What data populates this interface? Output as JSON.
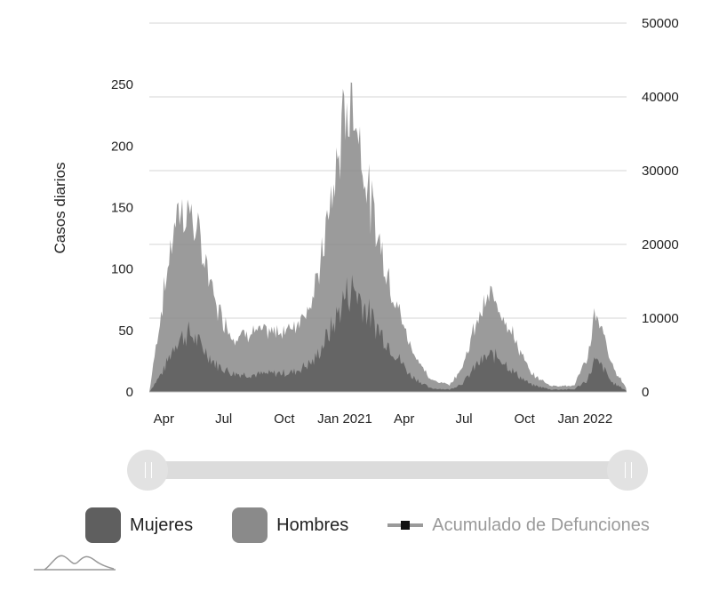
{
  "colors": {
    "women": "#5f5f5f",
    "men": "#8a8a8a",
    "cumulative_line": "#9a9a9a",
    "grid": "#d6d6d6"
  },
  "chart_data": {
    "type": "area",
    "stacked": true,
    "y_axis_left": {
      "label": "Casos diarios",
      "ticks": [
        0,
        50,
        100,
        150,
        200,
        250
      ],
      "range": [
        0,
        300
      ]
    },
    "y_axis_right": {
      "ticks": [
        0,
        10000,
        20000,
        30000,
        40000,
        50000
      ],
      "range": [
        0,
        50000
      ]
    },
    "x_axis": {
      "tick_labels": [
        "Apr",
        "Jul",
        "Oct",
        "Jan 2021",
        "Apr",
        "Jul",
        "Oct",
        "Jan 2022"
      ],
      "tick_dates": [
        "2020-04-01",
        "2020-07-01",
        "2020-10-01",
        "2021-01-01",
        "2021-04-01",
        "2021-07-01",
        "2021-10-01",
        "2022-01-01"
      ],
      "range": [
        "2020-03-10",
        "2022-03-05"
      ]
    },
    "grid": true,
    "legend_position": "bottom",
    "series": [
      {
        "name": "Mujeres",
        "x": [
          "2020-03-10",
          "2020-04-01",
          "2020-04-20",
          "2020-05-10",
          "2020-06-01",
          "2020-06-20",
          "2020-07-15",
          "2020-08-15",
          "2020-09-15",
          "2020-10-15",
          "2020-11-15",
          "2020-12-15",
          "2021-01-01",
          "2021-01-15",
          "2021-02-10",
          "2021-03-10",
          "2021-04-10",
          "2021-05-10",
          "2021-06-10",
          "2021-07-01",
          "2021-07-20",
          "2021-08-10",
          "2021-08-25",
          "2021-09-15",
          "2021-10-10",
          "2021-11-10",
          "2021-12-15",
          "2022-01-05",
          "2022-01-15",
          "2022-01-28",
          "2022-02-10",
          "2022-03-05"
        ],
        "values": [
          0,
          18,
          42,
          48,
          35,
          22,
          15,
          14,
          15,
          16,
          25,
          55,
          78,
          85,
          60,
          38,
          14,
          3,
          2,
          8,
          22,
          30,
          28,
          16,
          6,
          2,
          2,
          10,
          25,
          20,
          8,
          1
        ]
      },
      {
        "name": "Hombres",
        "x": [
          "2020-03-10",
          "2020-04-01",
          "2020-04-20",
          "2020-05-10",
          "2020-06-01",
          "2020-06-20",
          "2020-07-15",
          "2020-08-15",
          "2020-09-15",
          "2020-10-15",
          "2020-11-15",
          "2020-12-15",
          "2021-01-01",
          "2021-01-15",
          "2021-02-10",
          "2021-03-10",
          "2021-04-10",
          "2021-05-10",
          "2021-06-10",
          "2021-07-01",
          "2021-07-20",
          "2021-08-10",
          "2021-08-25",
          "2021-09-15",
          "2021-10-10",
          "2021-11-10",
          "2021-12-15",
          "2022-01-05",
          "2022-01-15",
          "2022-01-28",
          "2022-02-10",
          "2022-03-05"
        ],
        "values": [
          0,
          62,
          103,
          100,
          75,
          48,
          30,
          35,
          33,
          37,
          52,
          110,
          150,
          150,
          90,
          52,
          24,
          7,
          4,
          15,
          35,
          48,
          42,
          28,
          9,
          3,
          3,
          18,
          37,
          30,
          14,
          2
        ]
      },
      {
        "name": "Acumulado de Defunciones",
        "visible": false,
        "x": [],
        "values": []
      }
    ]
  },
  "legend": [
    {
      "name": "Mujeres",
      "symbol": "box",
      "active": true
    },
    {
      "name": "Hombres",
      "symbol": "box",
      "active": true
    },
    {
      "name": "Acumulado de Defunciones",
      "symbol": "line",
      "active": false
    }
  ],
  "logo": {
    "icon": "mountain-logo-icon"
  }
}
